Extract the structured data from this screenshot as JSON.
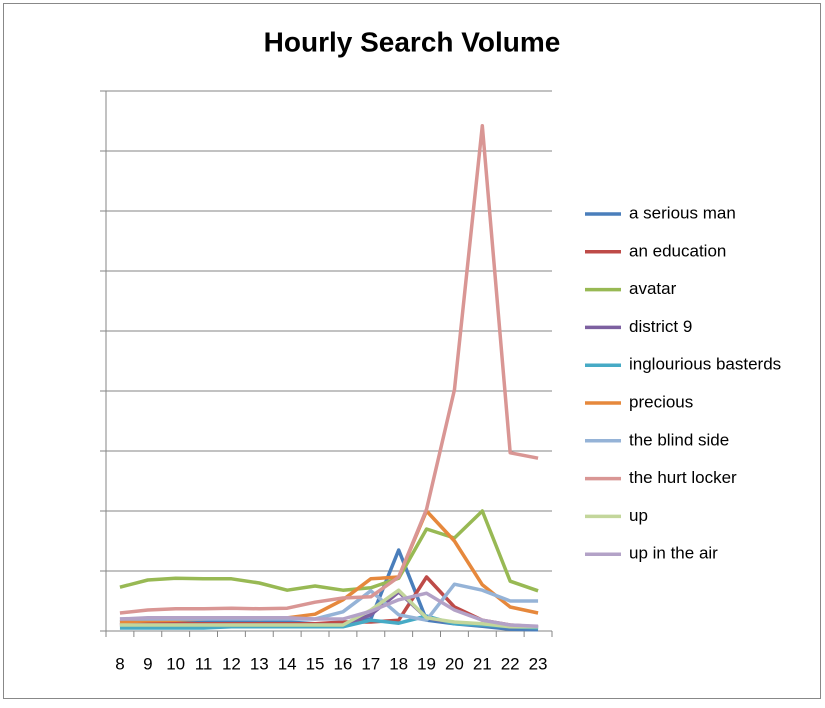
{
  "chart_data": {
    "type": "line",
    "title": "Hourly Search Volume",
    "categories": [
      "8",
      "9",
      "10",
      "11",
      "12",
      "13",
      "14",
      "15",
      "16",
      "17",
      "18",
      "19",
      "20",
      "21",
      "22",
      "23"
    ],
    "ylim": [
      0,
      9
    ],
    "yticks": [
      0,
      1,
      2,
      3,
      4,
      5,
      6,
      7,
      8,
      9
    ],
    "grid": true,
    "legend": "right",
    "series": [
      {
        "name": "a serious man",
        "color": "#4a7ebb",
        "values": [
          0.15,
          0.15,
          0.15,
          0.15,
          0.15,
          0.15,
          0.15,
          0.12,
          0.12,
          0.2,
          1.35,
          0.18,
          0.12,
          0.08,
          0.03,
          0.02
        ]
      },
      {
        "name": "an education",
        "color": "#be4b48",
        "values": [
          0.1,
          0.12,
          0.12,
          0.12,
          0.12,
          0.12,
          0.12,
          0.12,
          0.15,
          0.15,
          0.18,
          0.9,
          0.4,
          0.18,
          0.1,
          0.07
        ]
      },
      {
        "name": "avatar",
        "color": "#98b954",
        "values": [
          0.73,
          0.85,
          0.88,
          0.87,
          0.87,
          0.8,
          0.68,
          0.75,
          0.68,
          0.72,
          0.88,
          1.7,
          1.55,
          2.0,
          0.83,
          0.67
        ]
      },
      {
        "name": "district 9",
        "color": "#7d60a0",
        "values": [
          0.1,
          0.1,
          0.1,
          0.1,
          0.1,
          0.1,
          0.1,
          0.1,
          0.1,
          0.27,
          0.65,
          0.22,
          0.13,
          0.1,
          0.07,
          0.05
        ]
      },
      {
        "name": "inglourious basterds",
        "color": "#46aac5",
        "values": [
          0.05,
          0.05,
          0.05,
          0.05,
          0.07,
          0.07,
          0.07,
          0.07,
          0.07,
          0.18,
          0.13,
          0.25,
          0.12,
          0.1,
          0.07,
          0.05
        ]
      },
      {
        "name": "precious",
        "color": "#e6883c",
        "values": [
          0.15,
          0.17,
          0.18,
          0.2,
          0.22,
          0.2,
          0.22,
          0.28,
          0.52,
          0.87,
          0.9,
          2.0,
          1.5,
          0.77,
          0.4,
          0.3
        ]
      },
      {
        "name": "the blind side",
        "color": "#95b3d7",
        "values": [
          0.2,
          0.2,
          0.2,
          0.2,
          0.2,
          0.2,
          0.2,
          0.2,
          0.32,
          0.67,
          0.27,
          0.18,
          0.78,
          0.68,
          0.5,
          0.5
        ]
      },
      {
        "name": "the hurt locker",
        "color": "#d99694",
        "values": [
          0.3,
          0.35,
          0.37,
          0.37,
          0.38,
          0.37,
          0.38,
          0.48,
          0.55,
          0.57,
          0.9,
          2.03,
          4.02,
          8.42,
          2.97,
          2.88
        ]
      },
      {
        "name": "up",
        "color": "#c3d69b",
        "values": [
          0.1,
          0.1,
          0.1,
          0.1,
          0.1,
          0.1,
          0.1,
          0.1,
          0.1,
          0.35,
          0.68,
          0.22,
          0.15,
          0.12,
          0.07,
          0.07
        ]
      },
      {
        "name": "up in the air",
        "color": "#b3a2c7",
        "values": [
          0.2,
          0.22,
          0.22,
          0.22,
          0.22,
          0.22,
          0.22,
          0.2,
          0.2,
          0.33,
          0.52,
          0.63,
          0.35,
          0.18,
          0.1,
          0.08
        ]
      }
    ]
  }
}
